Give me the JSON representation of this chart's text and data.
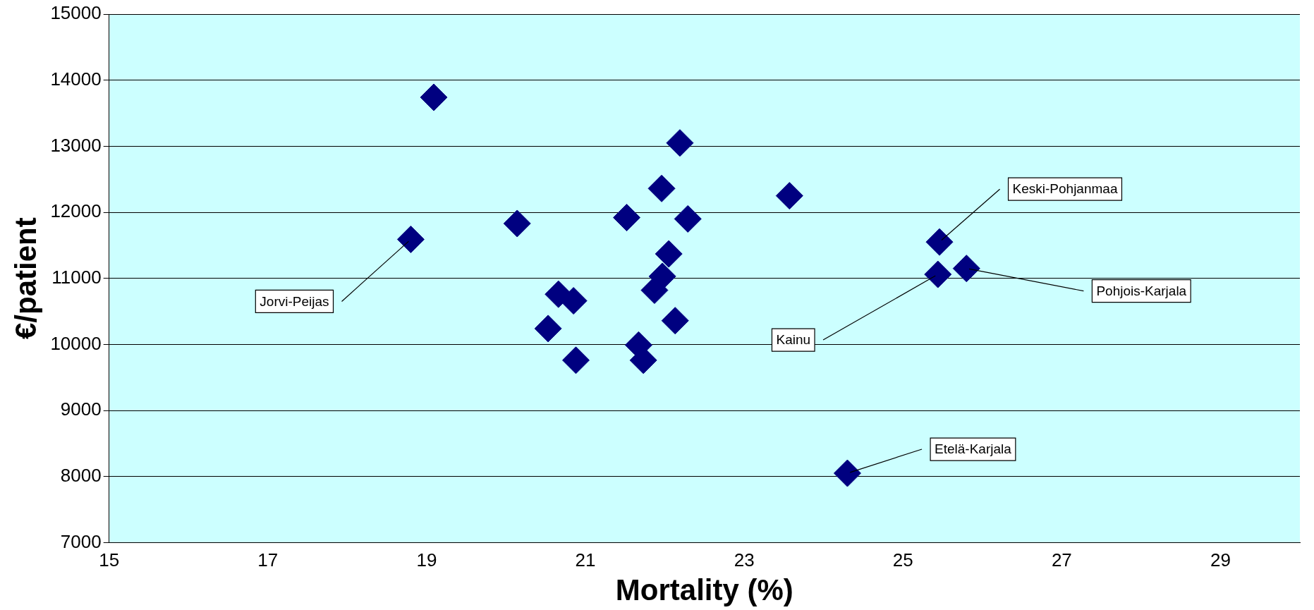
{
  "chart_data": {
    "type": "scatter",
    "xlabel": "Mortality (%)",
    "ylabel": "€/patient",
    "x": [
      19.09,
      18.8,
      20.14,
      20.66,
      20.85,
      20.53,
      20.88,
      21.52,
      22.19,
      21.96,
      22.29,
      22.05,
      21.97,
      21.87,
      22.13,
      21.67,
      21.73,
      23.57,
      25.46,
      25.44,
      25.8,
      24.3
    ],
    "values": [
      13740,
      11590,
      11830,
      10760,
      10660,
      10240,
      9760,
      11920,
      13050,
      12360,
      11900,
      11370,
      11030,
      10820,
      10360,
      9990,
      9760,
      12250,
      11550,
      11060,
      11150,
      8050
    ],
    "color": "#000080",
    "marker": "diamond",
    "xlim": [
      15,
      30
    ],
    "xticks": [
      15,
      17,
      19,
      21,
      23,
      25,
      27,
      29
    ],
    "ylim": [
      7000,
      15000
    ],
    "yticks": [
      7000,
      8000,
      9000,
      10000,
      11000,
      12000,
      13000,
      14000,
      15000
    ],
    "grid": "y",
    "annotations": [
      {
        "text": "Jorvi-Peijas",
        "x": 18.8,
        "y": 11590
      },
      {
        "text": "Keski-Pohjanmaa",
        "x": 25.46,
        "y": 11550
      },
      {
        "text": "Pohjois-Karjala",
        "x": 25.8,
        "y": 11150
      },
      {
        "text": "Kainu",
        "x": 25.44,
        "y": 11060
      },
      {
        "text": "Etelä-Karjala",
        "x": 24.3,
        "y": 8050
      }
    ]
  }
}
